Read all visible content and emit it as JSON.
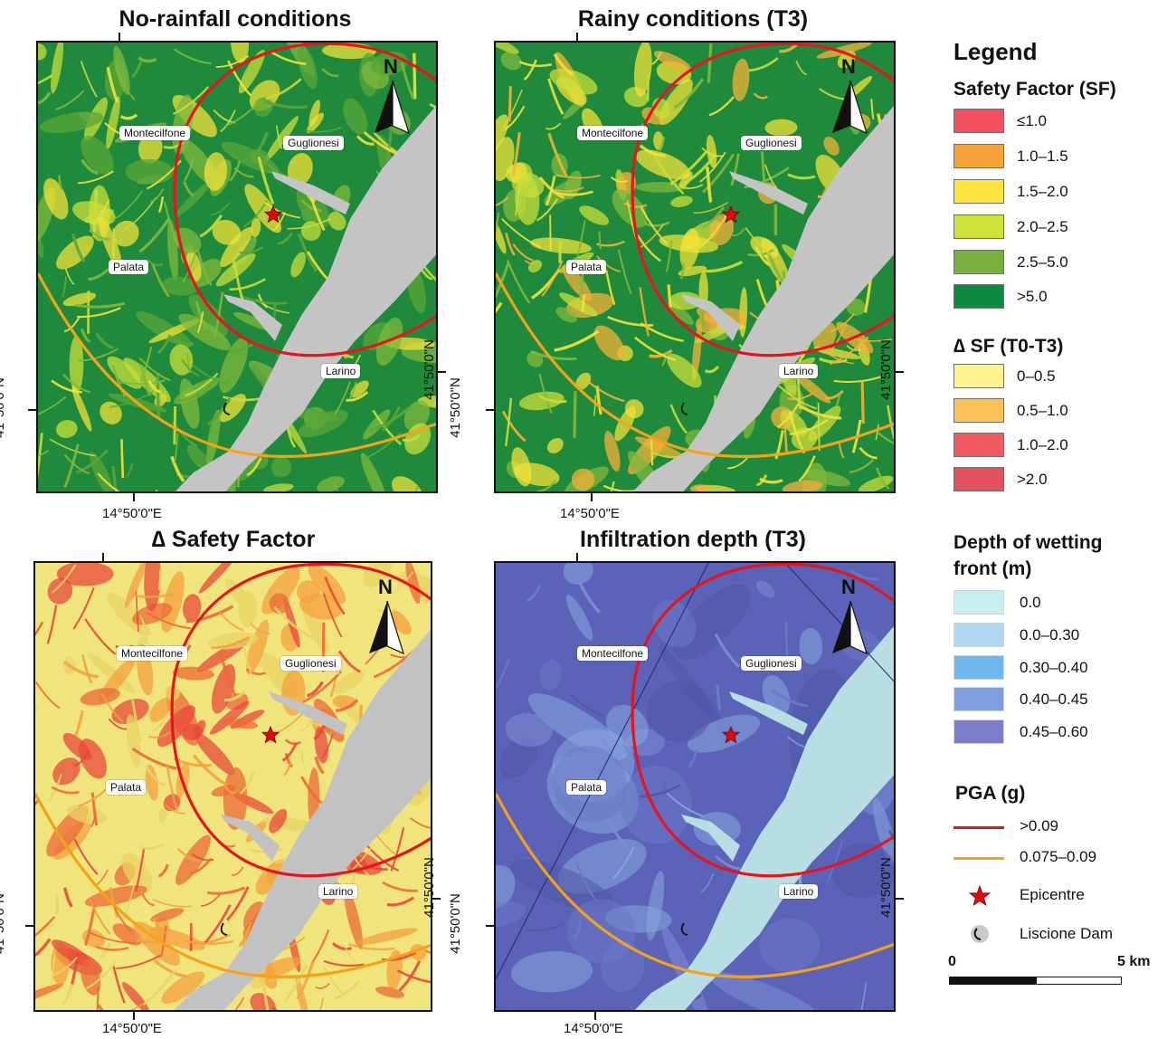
{
  "panels": [
    {
      "title": "No-rainfall conditions"
    },
    {
      "title": "Rainy conditions (T3)"
    },
    {
      "title": "∆ Safety Factor"
    },
    {
      "title": "Infiltration depth (T3)"
    }
  ],
  "towns": [
    "Montecilfone",
    "Guglionesi",
    "Palata",
    "Larino"
  ],
  "coords": {
    "easting": "14°50'0\"E",
    "northing": "41°50'0\"N"
  },
  "north_label": "N",
  "legend": {
    "title": "Legend",
    "sf": {
      "title": "Safety Factor (SF)",
      "items": [
        {
          "label": "≤1.0",
          "color": "#f2505e"
        },
        {
          "label": "1.0–1.5",
          "color": "#f7a23a"
        },
        {
          "label": "1.5–2.0",
          "color": "#ffe53d"
        },
        {
          "label": "2.0–2.5",
          "color": "#cde23a"
        },
        {
          "label": "2.5–5.0",
          "color": "#76b23c"
        },
        {
          "label": ">5.0",
          "color": "#0f8a44"
        }
      ]
    },
    "dsf": {
      "title": "∆ SF (T0-T3)",
      "items": [
        {
          "label": "0–0.5",
          "color": "#fef38f"
        },
        {
          "label": "0.5–1.0",
          "color": "#fcc25a"
        },
        {
          "label": "1.0–2.0",
          "color": "#f25a62"
        },
        {
          "label": ">2.0",
          "color": "#e0525e"
        }
      ]
    },
    "depth": {
      "title_line1": "Depth of wetting",
      "title_line2": "front (m)",
      "items": [
        {
          "label": "0.0",
          "color": "#c8eef0"
        },
        {
          "label": "0.0–0.30",
          "color": "#aed8f2"
        },
        {
          "label": "0.30–0.40",
          "color": "#6db8ec"
        },
        {
          "label": "0.40–0.45",
          "color": "#7f9fdf"
        },
        {
          "label": "0.45–0.60",
          "color": "#7c7fc7"
        }
      ]
    },
    "pga": {
      "title": "PGA (g)",
      "items": [
        {
          "label": ">0.09",
          "color": "#e8141b"
        },
        {
          "label": "0.075–0.09",
          "color": "#f5a21b"
        }
      ]
    },
    "epicentre_label": "Epicentre",
    "dam_label": "Liscione Dam",
    "scale": {
      "start": "0",
      "end": "5 km"
    }
  }
}
